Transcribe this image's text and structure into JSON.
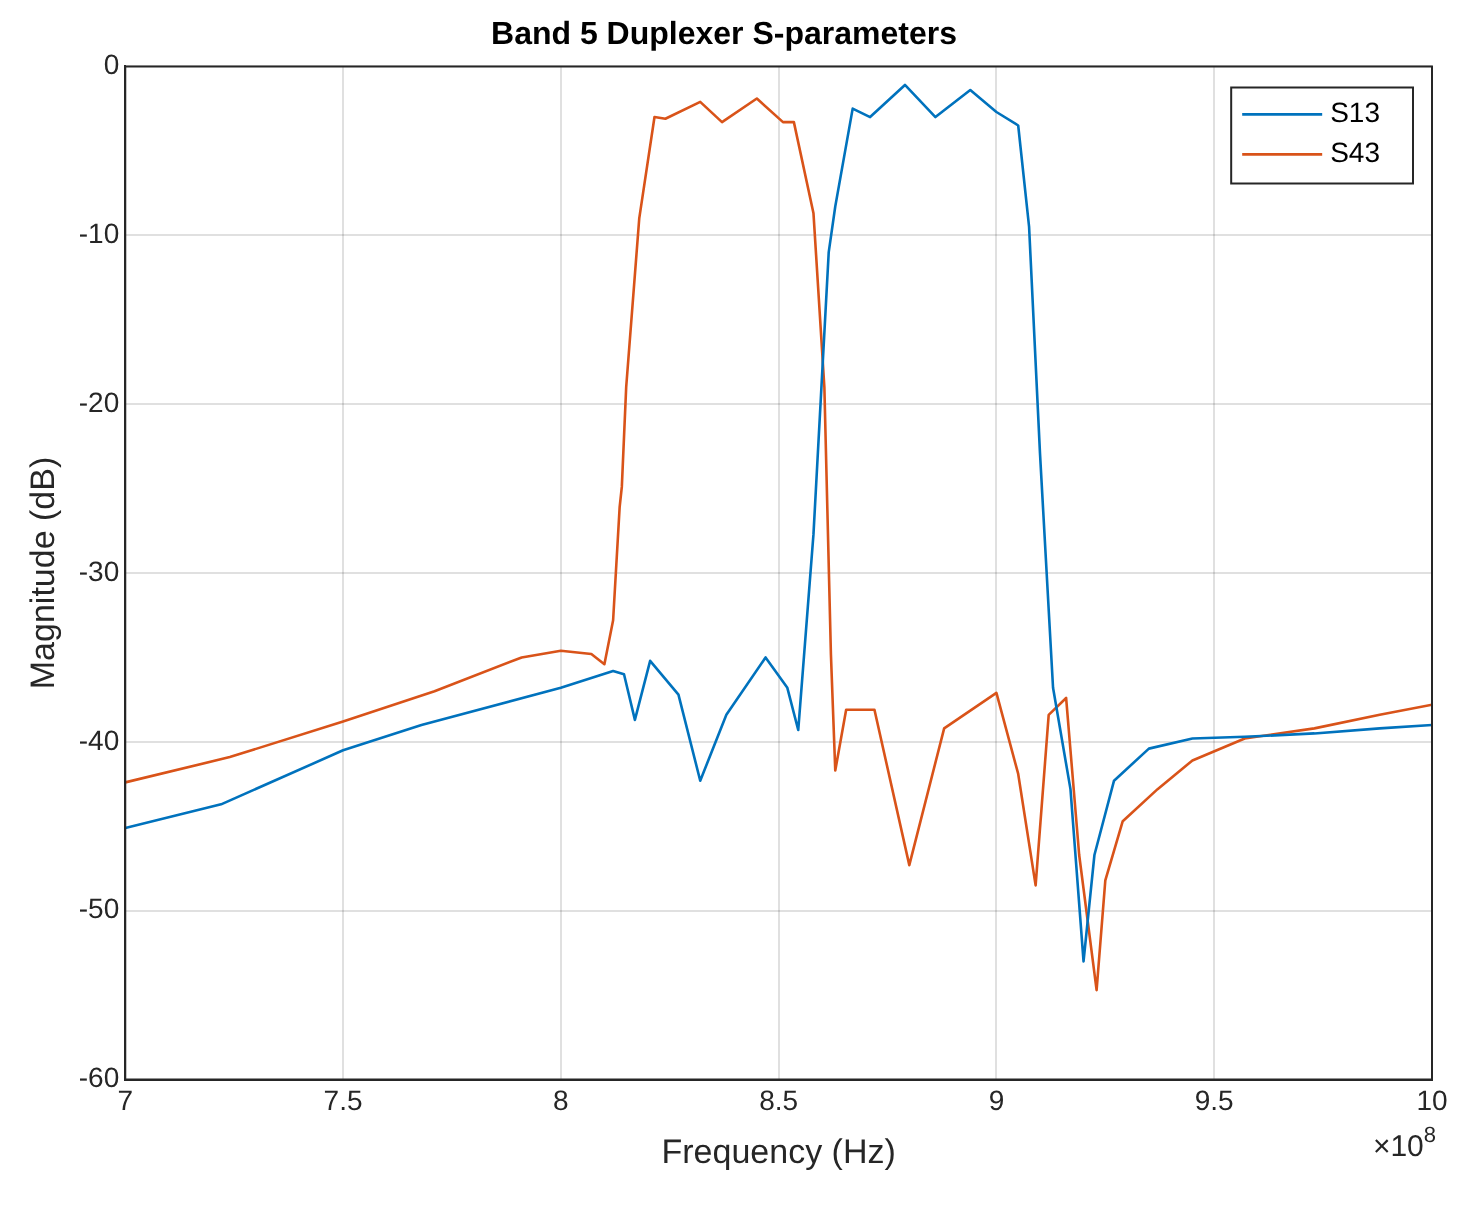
{
  "chart_data": {
    "type": "line",
    "title": "Band 5 Duplexer S-parameters",
    "xlabel": "Frequency (Hz)",
    "ylabel": "Magnitude (dB)",
    "xlim": [
      7,
      10
    ],
    "xticks": [
      7,
      7.5,
      8,
      8.5,
      9,
      9.5,
      10
    ],
    "ylim": [
      -60,
      0
    ],
    "yticks": [
      -60,
      -50,
      -40,
      -30,
      -20,
      -10,
      0
    ],
    "grid": true,
    "legend": "top right",
    "marker": "none",
    "line_style": "solid",
    "annotations": [
      "×10$^{8}$"
    ],
    "series": [
      {
        "name": "S13",
        "color": "#0072bd",
        "x": [
          7.0,
          7.22,
          7.5,
          7.68,
          8.0,
          8.12,
          8.145,
          8.17,
          8.205,
          8.27,
          8.32,
          8.38,
          8.47,
          8.52,
          8.545,
          8.58,
          8.615,
          8.63,
          8.67,
          8.71,
          8.79,
          8.86,
          8.94,
          9.0,
          9.05,
          9.075,
          9.1,
          9.13,
          9.17,
          9.2,
          9.225,
          9.27,
          9.35,
          9.45,
          9.57,
          9.73,
          9.88,
          10.0
        ],
        "values": [
          -45.1,
          -43.7,
          -40.5,
          -39.0,
          -36.8,
          -35.8,
          -36.0,
          -38.7,
          -35.2,
          -37.2,
          -42.3,
          -38.4,
          -35.0,
          -36.8,
          -39.3,
          -27.7,
          -11.0,
          -8.3,
          -2.5,
          -3.0,
          -1.1,
          -3.0,
          -1.4,
          -2.7,
          -3.5,
          -9.5,
          -22.9,
          -36.8,
          -42.8,
          -53.0,
          -46.7,
          -42.3,
          -40.4,
          -39.8,
          -39.7,
          -39.5,
          -39.2,
          -39.0
        ]
      },
      {
        "name": "S43",
        "color": "#d95319",
        "x": [
          7.0,
          7.24,
          7.5,
          7.71,
          7.91,
          8.0,
          8.07,
          8.1,
          8.12,
          8.135,
          8.14,
          8.15,
          8.18,
          8.215,
          8.24,
          8.32,
          8.37,
          8.45,
          8.51,
          8.535,
          8.58,
          8.605,
          8.62,
          8.63,
          8.655,
          8.72,
          8.8,
          8.88,
          9.0,
          9.05,
          9.09,
          9.12,
          9.16,
          9.19,
          9.23,
          9.25,
          9.29,
          9.37,
          9.45,
          9.57,
          9.73,
          9.88,
          10.0
        ],
        "values": [
          -42.4,
          -40.9,
          -38.8,
          -37.0,
          -35.0,
          -34.6,
          -34.8,
          -35.4,
          -32.8,
          -26.1,
          -24.9,
          -19.0,
          -9.0,
          -3.0,
          -3.1,
          -2.1,
          -3.3,
          -1.9,
          -3.3,
          -3.3,
          -8.7,
          -19.0,
          -34.8,
          -41.7,
          -38.1,
          -38.1,
          -47.3,
          -39.2,
          -37.1,
          -41.9,
          -48.5,
          -38.4,
          -37.4,
          -46.7,
          -54.7,
          -48.2,
          -44.7,
          -42.8,
          -41.1,
          -39.8,
          -39.2,
          -38.4,
          -37.8
        ]
      }
    ]
  }
}
